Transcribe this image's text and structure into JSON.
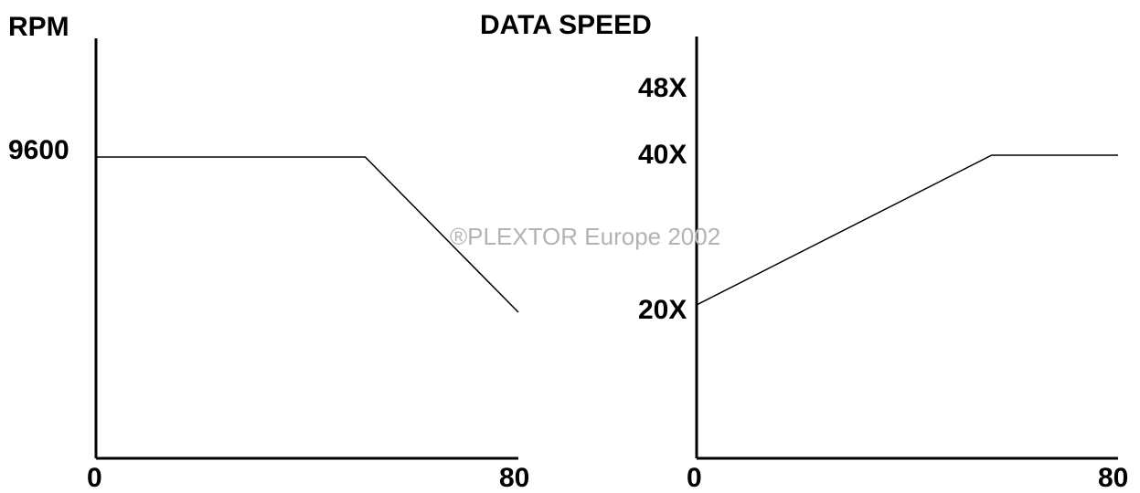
{
  "watermark": "®PLEXTOR Europe 2002",
  "chart_data": [
    {
      "type": "line",
      "ylabel": "RPM",
      "xlabel": "",
      "x_ticks": [
        "0",
        "80"
      ],
      "y_ticks": [
        "9600"
      ],
      "xlim": [
        0,
        80
      ],
      "series": [
        {
          "x": [
            0,
            51,
            80
          ],
          "y": [
            9600,
            9600,
            5500
          ]
        }
      ]
    },
    {
      "type": "line",
      "ylabel": "DATA SPEED",
      "xlabel": "",
      "x_ticks": [
        "0",
        "80"
      ],
      "y_ticks": [
        "20X",
        "40X",
        "48X"
      ],
      "xlim": [
        0,
        80
      ],
      "series": [
        {
          "x": [
            0,
            56,
            80
          ],
          "y": [
            20,
            40,
            40
          ]
        }
      ]
    }
  ]
}
